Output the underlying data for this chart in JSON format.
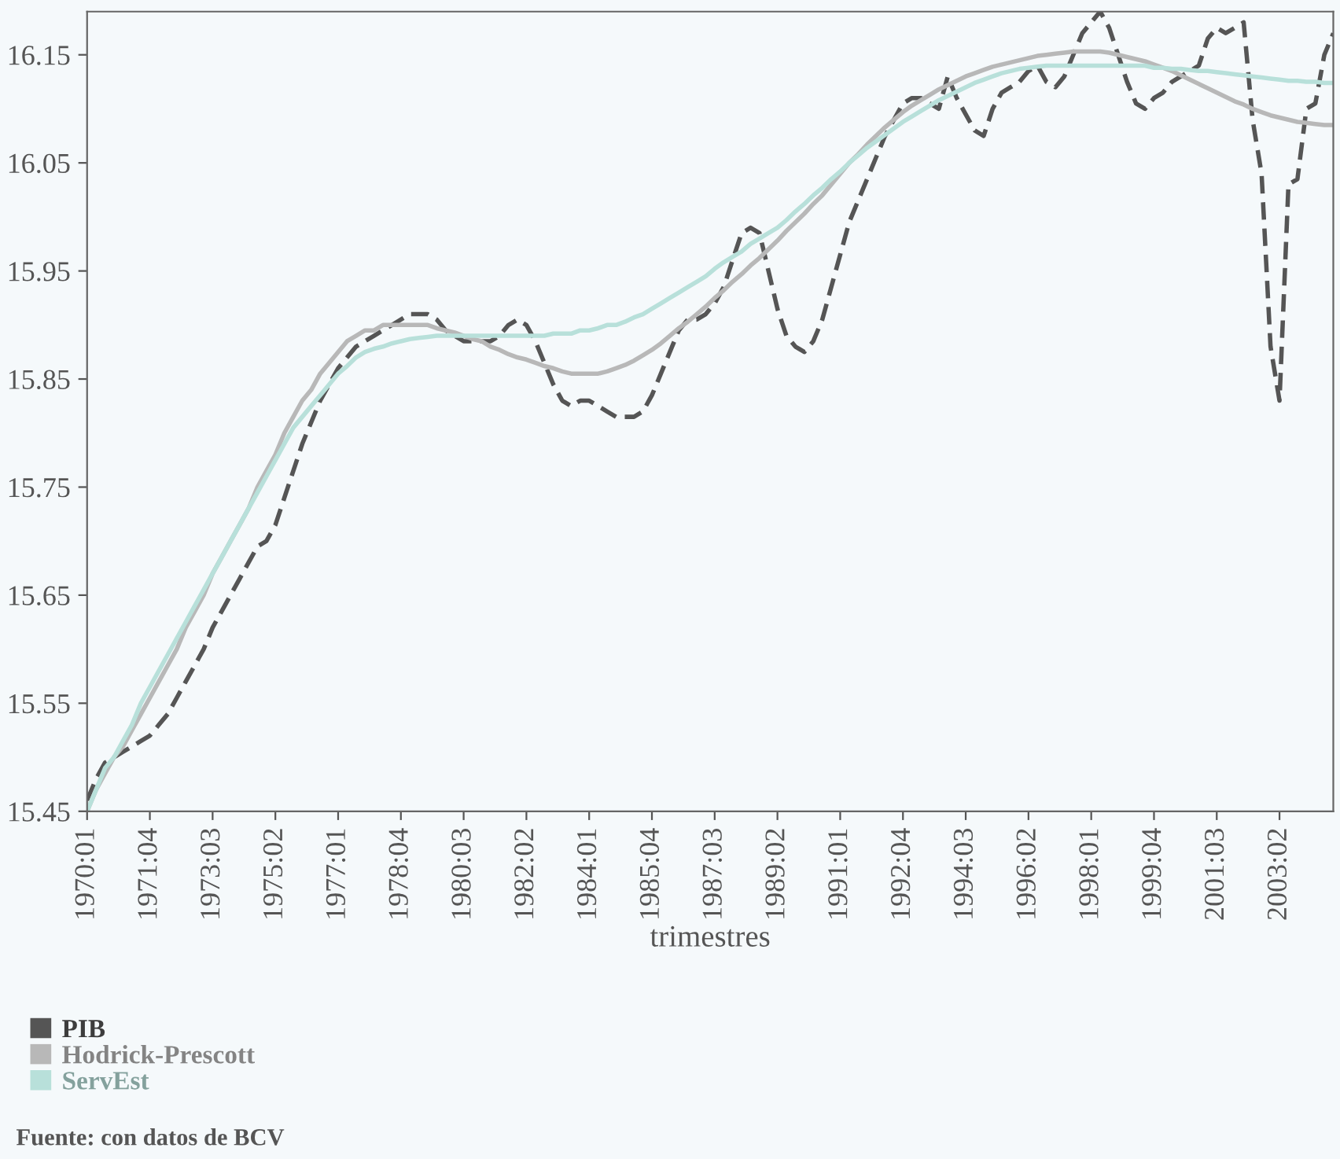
{
  "chart_data": {
    "type": "line",
    "xlabel": "trimestres",
    "categories": [
      "1970:01",
      null,
      null,
      null,
      null,
      null,
      null,
      "1971:04",
      null,
      null,
      null,
      null,
      null,
      null,
      "1973:03",
      null,
      null,
      null,
      null,
      null,
      null,
      "1975:02",
      null,
      null,
      null,
      null,
      null,
      null,
      "1977:01",
      null,
      null,
      null,
      null,
      null,
      null,
      "1978:04",
      null,
      null,
      null,
      null,
      null,
      null,
      "1980:03",
      null,
      null,
      null,
      null,
      null,
      null,
      "1982:02",
      null,
      null,
      null,
      null,
      null,
      null,
      "1984:01",
      null,
      null,
      null,
      null,
      null,
      null,
      "1985:04",
      null,
      null,
      null,
      null,
      null,
      null,
      "1987:03",
      null,
      null,
      null,
      null,
      null,
      null,
      "1989:02",
      null,
      null,
      null,
      null,
      null,
      null,
      "1991:01",
      null,
      null,
      null,
      null,
      null,
      null,
      "1992:04",
      null,
      null,
      null,
      null,
      null,
      null,
      "1994:03",
      null,
      null,
      null,
      null,
      null,
      null,
      "1996:02",
      null,
      null,
      null,
      null,
      null,
      null,
      "1998:01",
      null,
      null,
      null,
      null,
      null,
      null,
      "1999:04",
      null,
      null,
      null,
      null,
      null,
      null,
      "2001:03",
      null,
      null,
      null,
      null,
      null,
      null,
      "2003:02",
      null,
      null,
      null,
      null,
      null,
      null
    ],
    "series": [
      {
        "name": "PIB",
        "color": "#555555",
        "line_style": "dashed",
        "values": [
          15.46,
          15.48,
          15.495,
          15.5,
          15.505,
          15.51,
          15.515,
          15.52,
          15.53,
          15.54,
          15.555,
          15.57,
          15.585,
          15.6,
          15.62,
          15.635,
          15.65,
          15.665,
          15.68,
          15.695,
          15.7,
          15.715,
          15.74,
          15.765,
          15.79,
          15.81,
          15.83,
          15.845,
          15.86,
          15.87,
          15.88,
          15.885,
          15.89,
          15.895,
          15.9,
          15.905,
          15.91,
          15.91,
          15.91,
          15.905,
          15.895,
          15.89,
          15.885,
          15.885,
          15.885,
          15.885,
          15.89,
          15.9,
          15.905,
          15.9,
          15.885,
          15.865,
          15.845,
          15.83,
          15.825,
          15.83,
          15.83,
          15.825,
          15.82,
          15.815,
          15.815,
          15.815,
          15.82,
          15.835,
          15.855,
          15.875,
          15.895,
          15.905,
          15.905,
          15.91,
          15.92,
          15.935,
          15.96,
          15.985,
          15.99,
          15.985,
          15.95,
          15.915,
          15.89,
          15.88,
          15.875,
          15.885,
          15.905,
          15.935,
          15.965,
          15.995,
          16.015,
          16.035,
          16.055,
          16.075,
          16.09,
          16.105,
          16.11,
          16.11,
          16.105,
          16.1,
          16.13,
          16.11,
          16.095,
          16.08,
          16.075,
          16.1,
          16.115,
          16.12,
          16.125,
          16.135,
          16.14,
          16.125,
          16.12,
          16.13,
          16.15,
          16.17,
          16.18,
          16.19,
          16.175,
          16.15,
          16.125,
          16.105,
          16.1,
          16.11,
          16.115,
          16.125,
          16.13,
          16.135,
          16.14,
          16.165,
          16.175,
          16.17,
          16.175,
          16.18,
          16.09,
          16.04,
          15.88,
          15.83,
          16.03,
          16.035,
          16.1,
          16.105,
          16.15,
          16.17
        ]
      },
      {
        "name": "Hodrick-Prescott",
        "color": "#b8b8b8",
        "line_style": "solid",
        "values": [
          15.45,
          15.47,
          15.485,
          15.5,
          15.51,
          15.525,
          15.54,
          15.555,
          15.57,
          15.585,
          15.6,
          15.62,
          15.635,
          15.65,
          15.67,
          15.685,
          15.7,
          15.715,
          15.73,
          15.75,
          15.765,
          15.78,
          15.8,
          15.815,
          15.83,
          15.84,
          15.855,
          15.865,
          15.875,
          15.885,
          15.89,
          15.895,
          15.895,
          15.9,
          15.9,
          15.9,
          15.9,
          15.9,
          15.9,
          15.897,
          15.895,
          15.893,
          15.89,
          15.887,
          15.885,
          15.88,
          15.877,
          15.873,
          15.87,
          15.868,
          15.865,
          15.862,
          15.86,
          15.857,
          15.855,
          15.855,
          15.855,
          15.855,
          15.857,
          15.86,
          15.863,
          15.867,
          15.872,
          15.877,
          15.883,
          15.89,
          15.897,
          15.903,
          15.91,
          15.917,
          15.925,
          15.932,
          15.94,
          15.947,
          15.955,
          15.962,
          15.97,
          15.978,
          15.987,
          15.995,
          16.003,
          16.012,
          16.02,
          16.03,
          16.04,
          16.05,
          16.058,
          16.067,
          16.075,
          16.083,
          16.09,
          16.097,
          16.103,
          16.108,
          16.113,
          16.118,
          16.122,
          16.126,
          16.13,
          16.133,
          16.136,
          16.139,
          16.141,
          16.143,
          16.145,
          16.147,
          16.149,
          16.15,
          16.151,
          16.152,
          16.153,
          16.153,
          16.153,
          16.153,
          16.152,
          16.15,
          16.148,
          16.146,
          16.144,
          16.141,
          16.138,
          16.135,
          16.131,
          16.127,
          16.123,
          16.119,
          16.115,
          16.111,
          16.107,
          16.104,
          16.1,
          16.097,
          16.094,
          16.092,
          16.09,
          16.088,
          16.087,
          16.086,
          16.085,
          16.085
        ]
      },
      {
        "name": "ServEst",
        "color": "#b8e0da",
        "line_style": "solid",
        "values": [
          15.45,
          15.47,
          15.49,
          15.5,
          15.515,
          15.53,
          15.55,
          15.565,
          15.58,
          15.595,
          15.61,
          15.625,
          15.64,
          15.655,
          15.67,
          15.685,
          15.7,
          15.715,
          15.73,
          15.745,
          15.76,
          15.775,
          15.79,
          15.805,
          15.815,
          15.825,
          15.835,
          15.845,
          15.855,
          15.862,
          15.87,
          15.875,
          15.878,
          15.88,
          15.883,
          15.885,
          15.887,
          15.888,
          15.889,
          15.89,
          15.89,
          15.89,
          15.89,
          15.89,
          15.89,
          15.89,
          15.89,
          15.89,
          15.89,
          15.89,
          15.89,
          15.89,
          15.892,
          15.892,
          15.892,
          15.895,
          15.895,
          15.897,
          15.9,
          15.9,
          15.903,
          15.907,
          15.91,
          15.915,
          15.92,
          15.925,
          15.93,
          15.935,
          15.94,
          15.945,
          15.952,
          15.958,
          15.963,
          15.968,
          15.975,
          15.98,
          15.985,
          15.99,
          15.997,
          16.005,
          16.012,
          16.02,
          16.027,
          16.035,
          16.042,
          16.05,
          16.057,
          16.064,
          16.07,
          16.076,
          16.082,
          16.088,
          16.093,
          16.098,
          16.103,
          16.108,
          16.112,
          16.116,
          16.12,
          16.124,
          16.127,
          16.13,
          16.133,
          16.135,
          16.137,
          16.138,
          16.139,
          16.14,
          16.14,
          16.14,
          16.14,
          16.14,
          16.14,
          16.14,
          16.14,
          16.14,
          16.14,
          16.14,
          16.14,
          16.138,
          16.138,
          16.137,
          16.137,
          16.136,
          16.135,
          16.135,
          16.134,
          16.133,
          16.132,
          16.131,
          16.13,
          16.129,
          16.128,
          16.127,
          16.126,
          16.126,
          16.125,
          16.125,
          16.124,
          16.124
        ]
      }
    ],
    "ylim": [
      15.45,
      16.19
    ],
    "yticks": [
      15.45,
      15.55,
      15.65,
      15.75,
      15.85,
      15.95,
      16.05,
      16.15
    ],
    "grid": false,
    "legend": "bottom left",
    "marker": "none",
    "annotations": [
      "Fuente: con datos de BCV"
    ]
  }
}
